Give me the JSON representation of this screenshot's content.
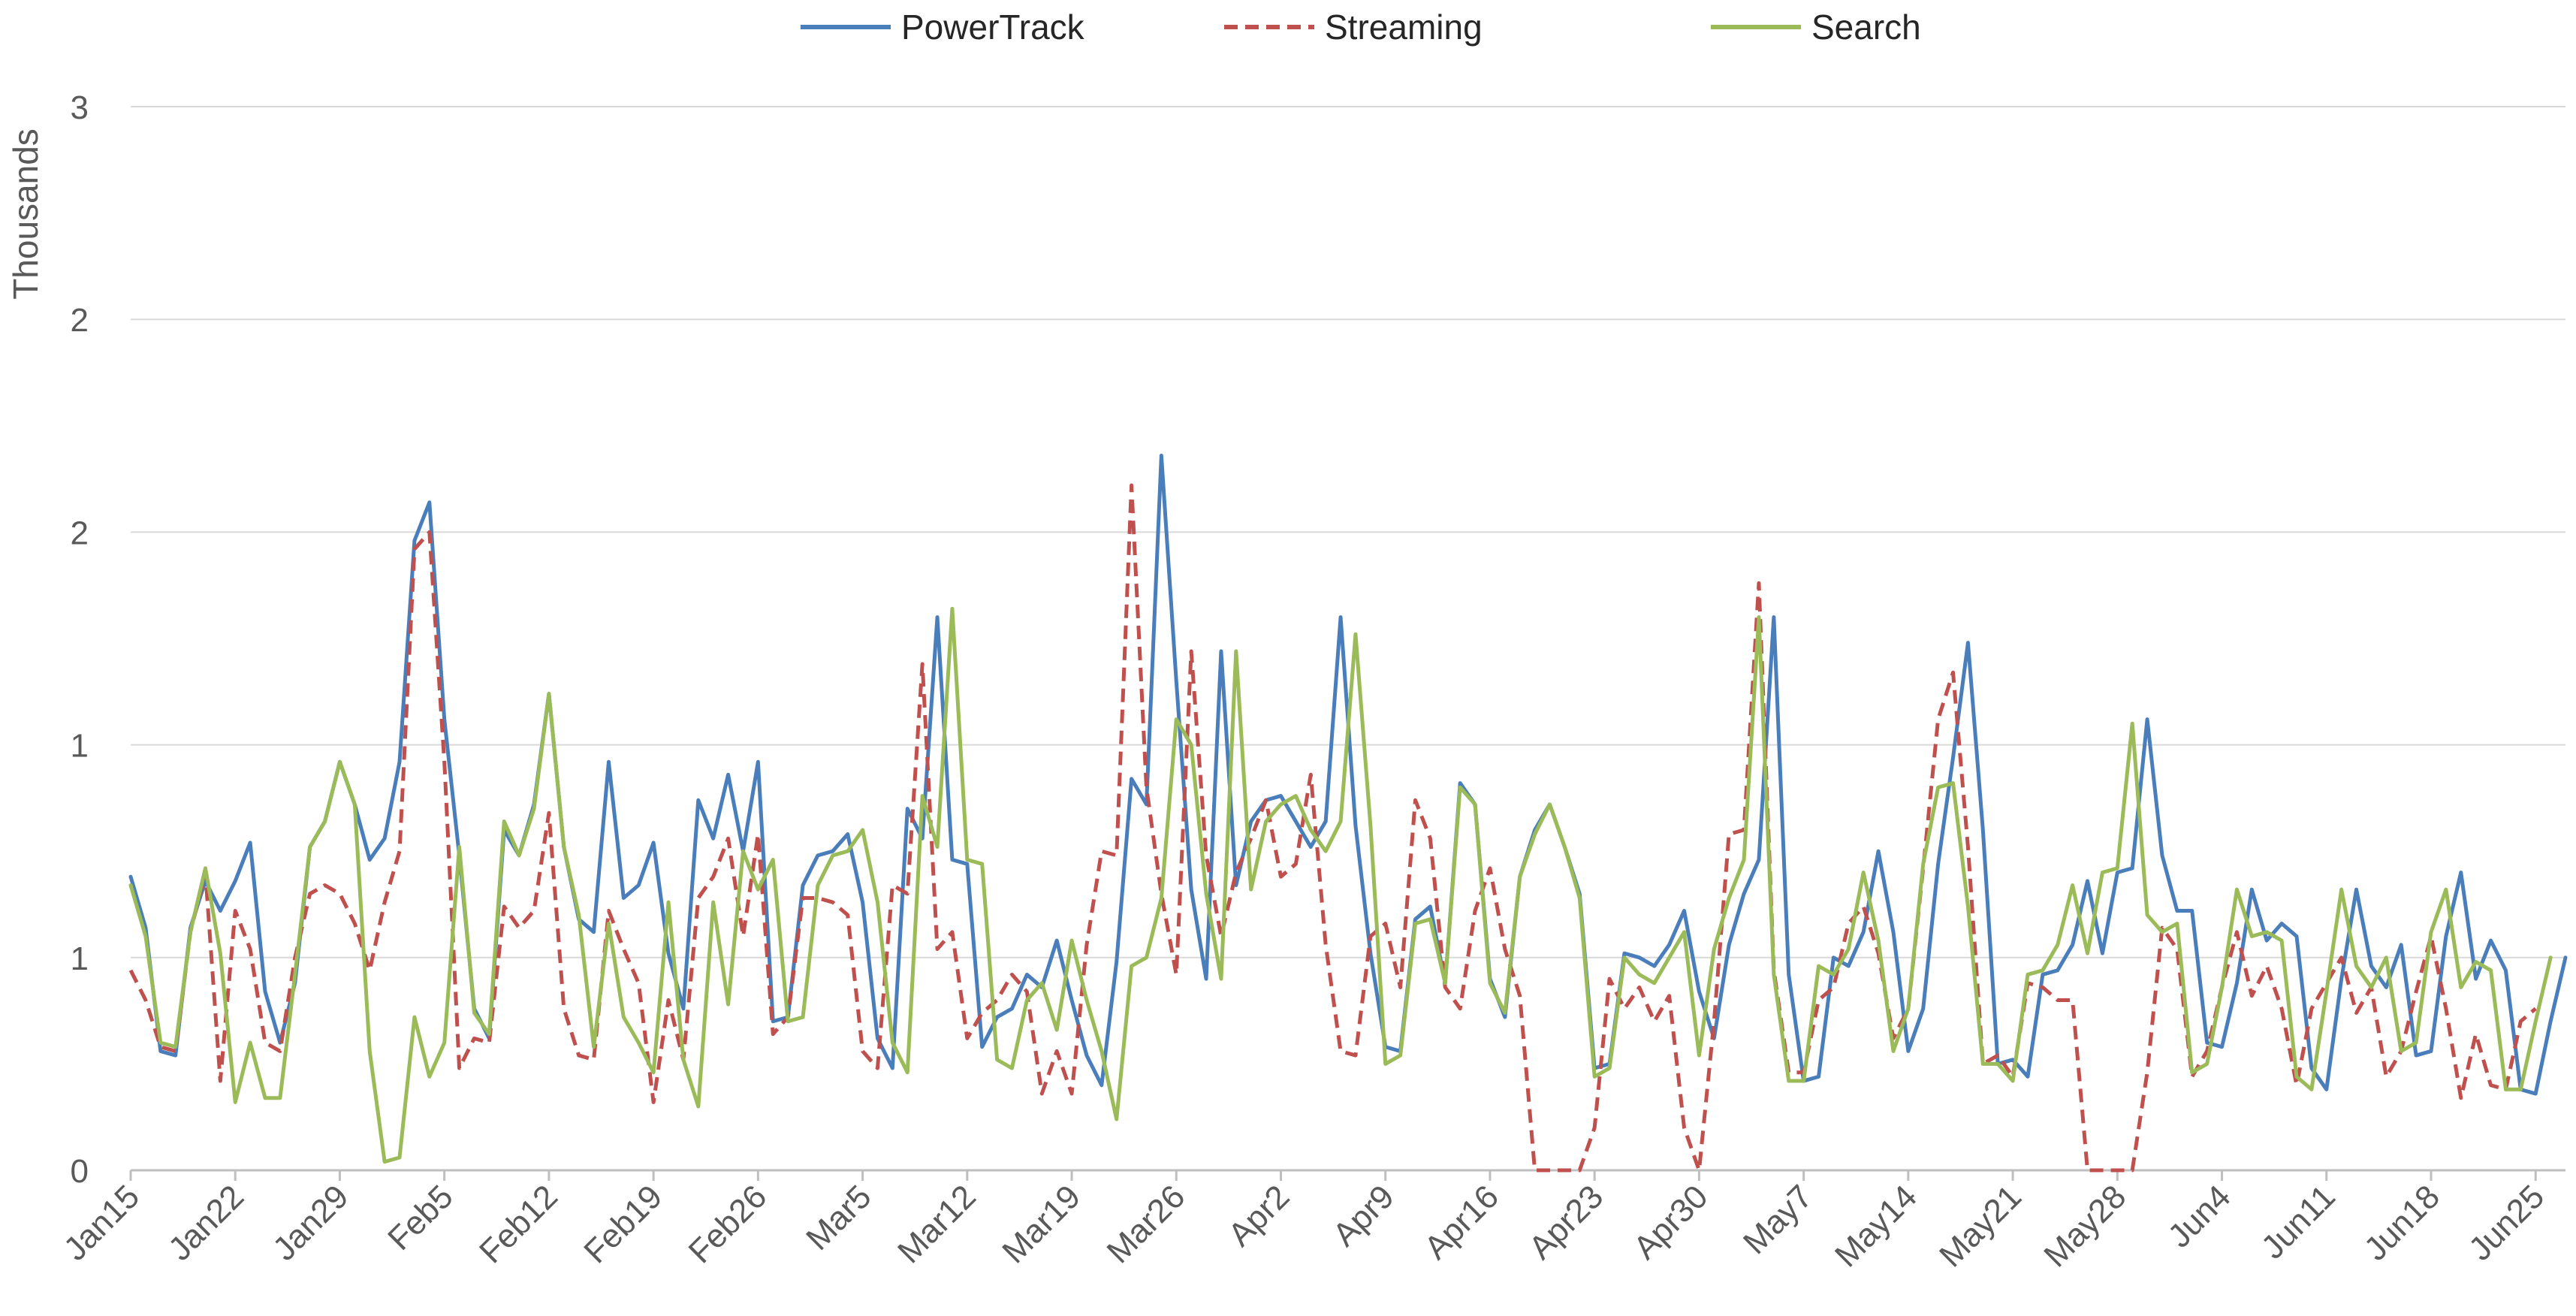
{
  "chart_data": {
    "type": "line",
    "title": "",
    "xlabel": "",
    "ylabel": "Thousands",
    "ylim": [
      0,
      3
    ],
    "yticks": [
      0,
      1,
      2,
      3
    ],
    "ytick_labels": [
      "0",
      "1",
      "1",
      "2",
      "2",
      "3"
    ],
    "ytick_values": [
      0,
      0.5,
      1.0,
      1.5,
      2.0,
      2.5
    ],
    "grid": true,
    "legend_position": "top-center",
    "start_date": "Jan15",
    "xtick_labels": [
      "Jan15",
      "Jan22",
      "Jan29",
      "Feb5",
      "Feb12",
      "Feb19",
      "Feb26",
      "Mar5",
      "Mar12",
      "Mar19",
      "Mar26",
      "Apr2",
      "Apr9",
      "Apr16",
      "Apr23",
      "Apr30",
      "May7",
      "May14",
      "May21",
      "May28",
      "Jun4",
      "Jun11",
      "Jun18",
      "Jun25"
    ],
    "series": [
      {
        "name": "PowerTrack",
        "color": "#4a7ebb",
        "dash": "solid",
        "values": [
          0.69,
          0.57,
          0.28,
          0.27,
          0.57,
          0.68,
          0.61,
          0.68,
          0.77,
          0.42,
          0.3,
          0.44,
          0.76,
          0.82,
          0.96,
          0.86,
          0.73,
          0.78,
          0.96,
          1.48,
          1.57,
          1.06,
          0.74,
          0.38,
          0.31,
          0.8,
          0.74,
          0.86,
          1.12,
          0.76,
          0.59,
          0.56,
          0.96,
          0.64,
          0.67,
          0.77,
          0.51,
          0.38,
          0.87,
          0.78,
          0.93,
          0.75,
          0.96,
          0.35,
          0.36,
          0.67,
          0.74,
          0.75,
          0.79,
          0.63,
          0.31,
          0.24,
          0.85,
          0.78,
          1.3,
          0.73,
          0.72,
          0.29,
          0.36,
          0.38,
          0.46,
          0.43,
          0.54,
          0.4,
          0.27,
          0.2,
          0.49,
          0.92,
          0.86,
          1.68,
          1.15,
          0.66,
          0.45,
          1.22,
          0.67,
          0.82,
          0.87,
          0.88,
          0.82,
          0.76,
          0.82,
          1.3,
          0.81,
          0.51,
          0.29,
          0.28,
          0.59,
          0.62,
          0.44,
          0.91,
          0.86,
          0.45,
          0.36,
          0.69,
          0.8,
          0.86,
          0.76,
          0.65,
          0.24,
          0.25,
          0.51,
          0.5,
          0.48,
          0.53,
          0.61,
          0.42,
          0.31,
          0.53,
          0.65,
          0.73,
          1.3,
          0.46,
          0.21,
          0.22,
          0.5,
          0.48,
          0.56,
          0.75,
          0.56,
          0.28,
          0.38,
          0.72,
          0.97,
          1.24,
          0.8,
          0.25,
          0.26,
          0.22,
          0.46,
          0.47,
          0.53,
          0.68,
          0.51,
          0.7,
          0.71,
          1.06,
          0.74,
          0.61,
          0.61,
          0.3,
          0.29,
          0.44,
          0.66,
          0.54,
          0.58,
          0.55,
          0.24,
          0.19,
          0.45,
          0.66,
          0.48,
          0.43,
          0.53,
          0.27,
          0.28,
          0.55,
          0.7,
          0.45,
          0.54,
          0.47,
          0.19,
          0.18,
          0.35,
          0.5
        ]
      },
      {
        "name": "Streaming",
        "color": "#c0504d",
        "dash": "dashed",
        "values": [
          0.47,
          0.4,
          0.29,
          0.28,
          0.56,
          0.7,
          0.21,
          0.61,
          0.52,
          0.3,
          0.28,
          0.5,
          0.65,
          0.67,
          0.65,
          0.58,
          0.47,
          0.63,
          0.75,
          1.46,
          1.5,
          0.96,
          0.24,
          0.31,
          0.3,
          0.62,
          0.57,
          0.61,
          0.84,
          0.38,
          0.27,
          0.26,
          0.61,
          0.52,
          0.44,
          0.16,
          0.4,
          0.26,
          0.64,
          0.69,
          0.78,
          0.55,
          0.79,
          0.32,
          0.36,
          0.64,
          0.64,
          0.63,
          0.6,
          0.28,
          0.24,
          0.67,
          0.65,
          1.19,
          0.52,
          0.56,
          0.31,
          0.37,
          0.4,
          0.46,
          0.42,
          0.18,
          0.28,
          0.18,
          0.53,
          0.75,
          0.74,
          1.61,
          0.9,
          0.65,
          0.46,
          1.22,
          0.74,
          0.55,
          0.7,
          0.78,
          0.87,
          0.69,
          0.72,
          0.93,
          0.53,
          0.28,
          0.27,
          0.55,
          0.58,
          0.43,
          0.87,
          0.78,
          0.43,
          0.38,
          0.61,
          0.71,
          0.52,
          0.41,
          0.0,
          0.0,
          0.0,
          0.0,
          0.1,
          0.45,
          0.38,
          0.43,
          0.35,
          0.41,
          0.1,
          0.0,
          0.35,
          0.79,
          0.8,
          1.38,
          0.47,
          0.23,
          0.23,
          0.4,
          0.43,
          0.58,
          0.62,
          0.51,
          0.31,
          0.38,
          0.71,
          1.06,
          1.17,
          0.76,
          0.25,
          0.27,
          0.22,
          0.44,
          0.43,
          0.4,
          0.4,
          0.0,
          0.0,
          0.0,
          0.0,
          0.23,
          0.57,
          0.52,
          0.22,
          0.28,
          0.43,
          0.56,
          0.41,
          0.48,
          0.38,
          0.2,
          0.38,
          0.44,
          0.5,
          0.37,
          0.43,
          0.22,
          0.28,
          0.42,
          0.55,
          0.38,
          0.17,
          0.32,
          0.2,
          0.19,
          0.35,
          0.38
        ]
      },
      {
        "name": "Search",
        "color": "#9bbb59",
        "dash": "solid",
        "values": [
          0.67,
          0.55,
          0.3,
          0.29,
          0.56,
          0.71,
          0.51,
          0.16,
          0.3,
          0.17,
          0.17,
          0.46,
          0.76,
          0.82,
          0.96,
          0.86,
          0.28,
          0.02,
          0.03,
          0.36,
          0.22,
          0.3,
          0.76,
          0.37,
          0.32,
          0.82,
          0.74,
          0.85,
          1.12,
          0.76,
          0.6,
          0.29,
          0.58,
          0.36,
          0.3,
          0.23,
          0.63,
          0.26,
          0.15,
          0.63,
          0.39,
          0.75,
          0.66,
          0.73,
          0.35,
          0.36,
          0.67,
          0.74,
          0.75,
          0.8,
          0.63,
          0.3,
          0.23,
          0.88,
          0.76,
          1.32,
          0.73,
          0.72,
          0.26,
          0.24,
          0.4,
          0.44,
          0.33,
          0.54,
          0.4,
          0.28,
          0.12,
          0.48,
          0.5,
          0.64,
          1.06,
          1.0,
          0.65,
          0.45,
          1.22,
          0.66,
          0.82,
          0.86,
          0.88,
          0.8,
          0.75,
          0.82,
          1.26,
          0.81,
          0.25,
          0.27,
          0.58,
          0.59,
          0.44,
          0.9,
          0.86,
          0.44,
          0.37,
          0.69,
          0.79,
          0.86,
          0.76,
          0.64,
          0.22,
          0.24,
          0.5,
          0.46,
          0.44,
          0.5,
          0.56,
          0.27,
          0.52,
          0.64,
          0.73,
          1.3,
          0.46,
          0.21,
          0.21,
          0.48,
          0.46,
          0.52,
          0.7,
          0.54,
          0.28,
          0.38,
          0.72,
          0.9,
          0.91,
          0.62,
          0.25,
          0.25,
          0.21,
          0.46,
          0.47,
          0.53,
          0.67,
          0.51,
          0.7,
          0.71,
          1.05,
          0.6,
          0.56,
          0.58,
          0.23,
          0.25,
          0.43,
          0.66,
          0.55,
          0.56,
          0.54,
          0.22,
          0.19,
          0.42,
          0.66,
          0.48,
          0.43,
          0.5,
          0.28,
          0.3,
          0.56,
          0.66,
          0.43,
          0.49,
          0.47,
          0.19,
          0.19,
          0.35,
          0.5
        ]
      }
    ]
  }
}
